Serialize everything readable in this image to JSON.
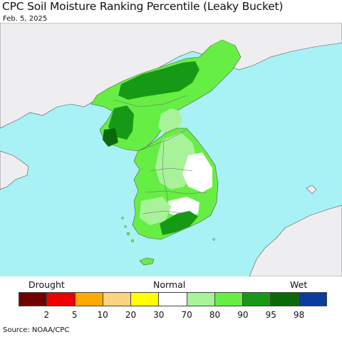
{
  "header": {
    "title": "CPC Soil Moisture Ranking Percentile (Leaky Bucket)",
    "date": "Feb. 5, 2025"
  },
  "map": {
    "colors": {
      "ocean": "#a8f2f5",
      "land_outside": "#eeeef0",
      "border": "#555555",
      "p95": "#169a16",
      "p90": "#66ee44",
      "p80": "#a8f29a",
      "p70": "#ffffff",
      "p98": "#0a6a0a"
    }
  },
  "legend": {
    "left_label": "Drought",
    "center_label": "Normal",
    "right_label": "Wet",
    "colors": [
      "#730000",
      "#ee0000",
      "#ffaa00",
      "#fcd37f",
      "#ffff00",
      "#ffffff",
      "#a8f29a",
      "#66ee44",
      "#169a16",
      "#0a6a0a",
      "#0a3c9a"
    ],
    "ticks": [
      "2",
      "5",
      "10",
      "20",
      "30",
      "70",
      "80",
      "90",
      "95",
      "98"
    ]
  },
  "footer": {
    "source": "Source: NOAA/CPC"
  }
}
